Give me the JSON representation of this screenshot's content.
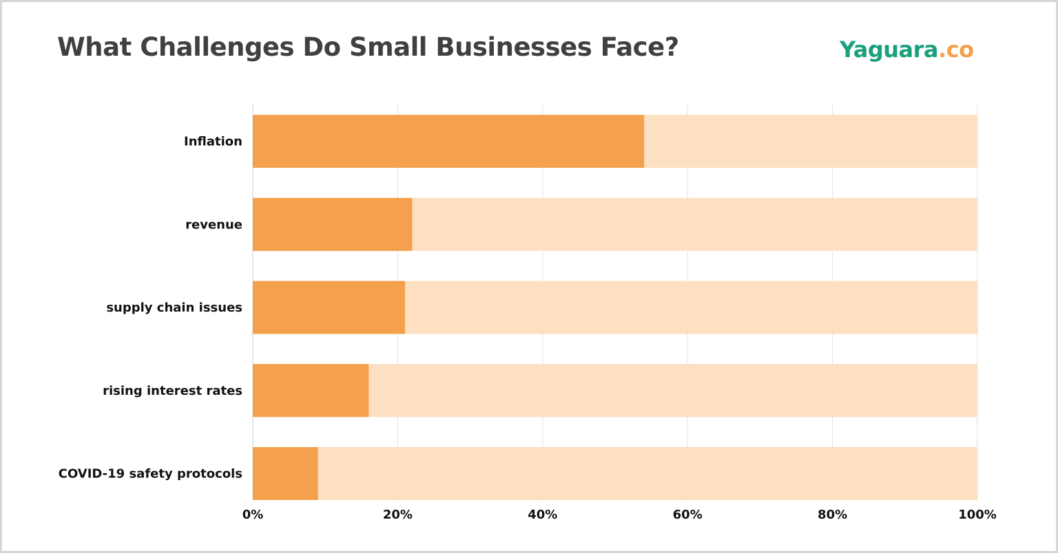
{
  "title": "What Challenges Do Small Businesses Face?",
  "logo": {
    "main": "Yaguara",
    "suffix": ".co",
    "main_color": "#1aa07c",
    "suffix_color": "#f5a04c"
  },
  "colors": {
    "bar": "#f5a04c",
    "track": "#fddfc2",
    "grid": "#e2e2e2"
  },
  "chart_data": {
    "type": "bar",
    "orientation": "horizontal",
    "title": "What Challenges Do Small Businesses Face?",
    "categories": [
      "Inflation",
      "revenue",
      "supply chain issues",
      "rising interest rates",
      "COVID-19 safety protocols"
    ],
    "values": [
      54,
      22,
      21,
      16,
      9
    ],
    "xlim": [
      0,
      100
    ],
    "xticks": [
      "0%",
      "20%",
      "40%",
      "60%",
      "80%",
      "100%"
    ],
    "grid": true,
    "legend": "none"
  }
}
